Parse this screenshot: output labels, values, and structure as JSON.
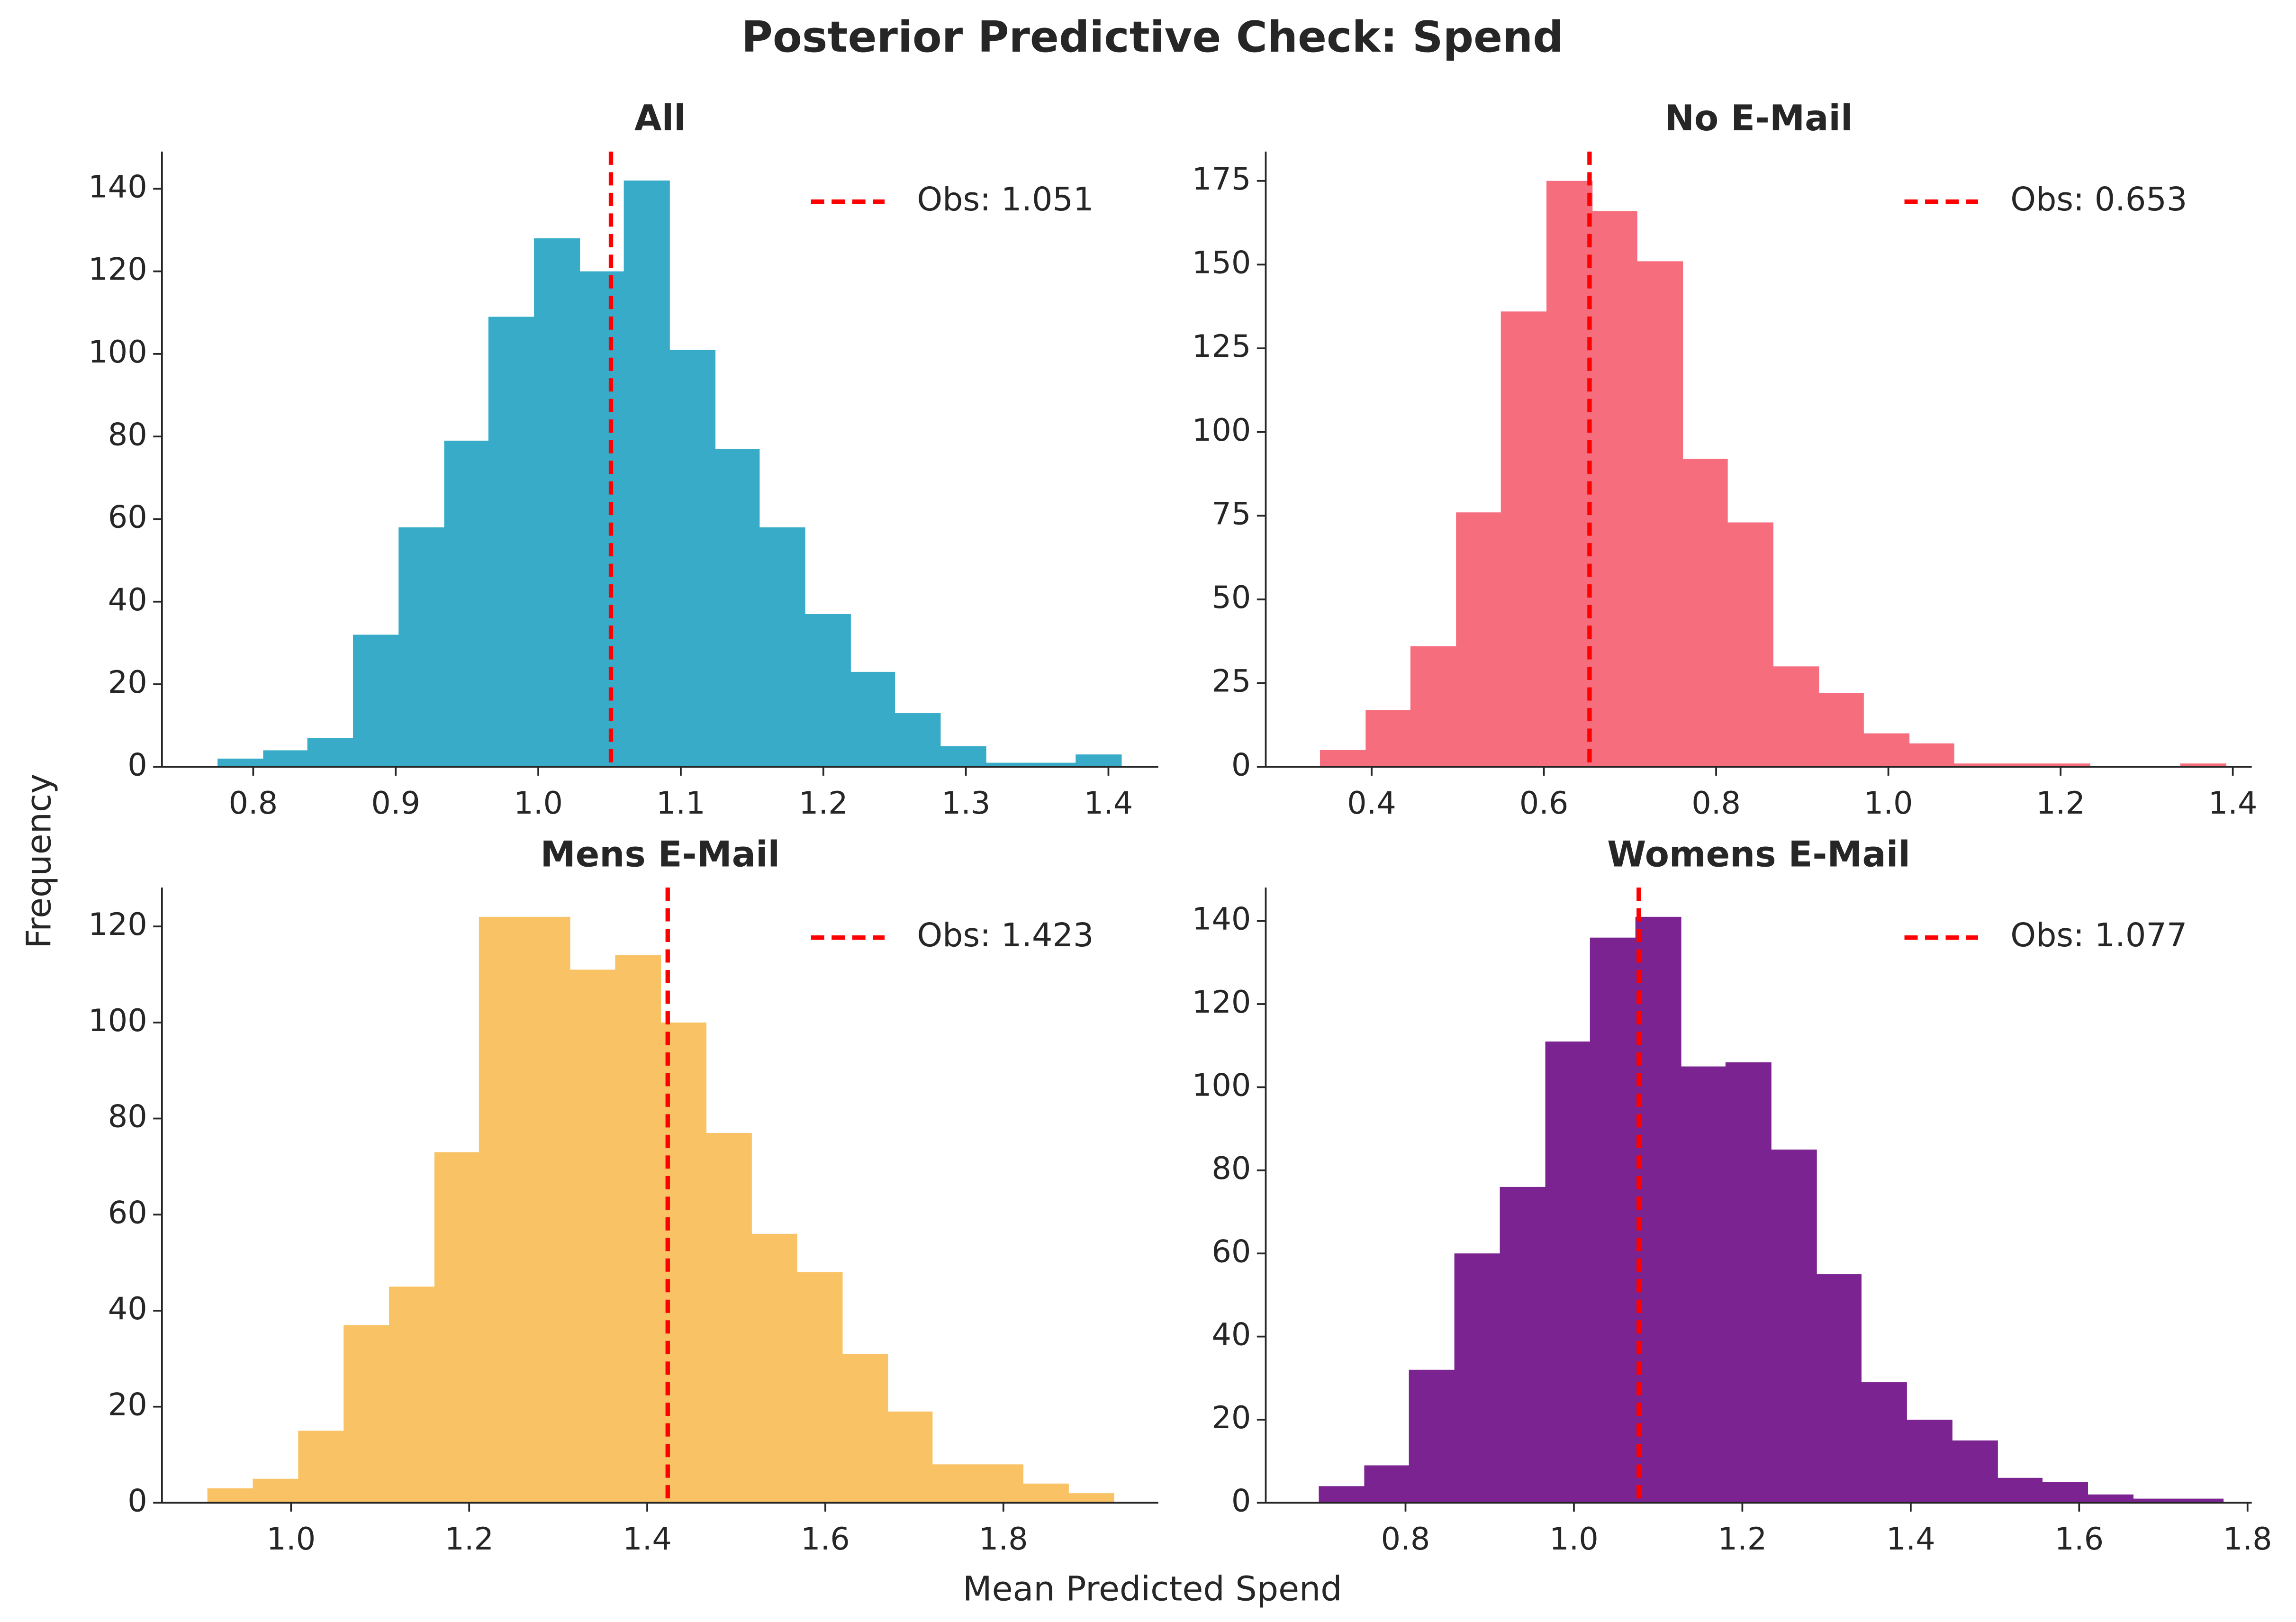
{
  "title": "Posterior Predictive Check: Spend",
  "xlabel": "Mean Predicted Spend",
  "ylabel": "Frequency",
  "chart_data": [
    {
      "type": "histogram",
      "title": "All",
      "color": "#37abc8",
      "bins": [
        0.775,
        0.807,
        0.838,
        0.87,
        0.902,
        0.934,
        0.965,
        0.997,
        1.029,
        1.06,
        1.092,
        1.124,
        1.155,
        1.187,
        1.219,
        1.25,
        1.282,
        1.314,
        1.346,
        1.377,
        1.409
      ],
      "values": [
        2,
        4,
        7,
        32,
        58,
        79,
        109,
        128,
        120,
        142,
        101,
        77,
        58,
        37,
        23,
        13,
        5,
        1,
        1,
        3
      ],
      "xlim": [
        0.736,
        1.435
      ],
      "ylim": [
        0,
        149
      ],
      "xticks": [
        0.8,
        0.9,
        {
          "value": 1,
          "label": "1.0"
        },
        1.1,
        1.2,
        1.3,
        1.4
      ],
      "yticks": [
        0,
        20,
        40,
        60,
        80,
        100,
        120,
        140
      ],
      "reference_line": {
        "value": 1.051,
        "label": "Obs: 1.051",
        "color": "#ff0000"
      },
      "legend": "upper right"
    },
    {
      "type": "histogram",
      "title": "No E-Mail",
      "color": "#f66d7e",
      "bins": [
        0.34,
        0.393,
        0.445,
        0.498,
        0.55,
        0.603,
        0.656,
        0.708,
        0.761,
        0.813,
        0.866,
        0.919,
        0.971,
        1.024,
        1.076,
        1.129,
        1.182,
        1.234,
        1.287,
        1.339,
        1.392
      ],
      "values": [
        5,
        17,
        36,
        76,
        136,
        175,
        166,
        151,
        92,
        73,
        30,
        22,
        10,
        7,
        1,
        1,
        1,
        0,
        0,
        1
      ],
      "xlim": [
        0.277,
        1.422
      ],
      "ylim": [
        0,
        183.75
      ],
      "xticks": [
        0.4,
        0.6,
        0.8,
        {
          "value": 1,
          "label": "1.0"
        },
        1.2,
        1.4
      ],
      "yticks": [
        0,
        25,
        50,
        75,
        100,
        125,
        150,
        175
      ],
      "reference_line": {
        "value": 0.653,
        "label": "Obs: 0.653",
        "color": "#ff0000"
      },
      "legend": "upper right"
    },
    {
      "type": "histogram",
      "title": "Mens E-Mail",
      "color": "#f9c264",
      "bins": [
        0.906,
        0.957,
        1.008,
        1.059,
        1.11,
        1.161,
        1.211,
        1.262,
        1.313,
        1.364,
        1.415,
        1.466,
        1.517,
        1.568,
        1.619,
        1.67,
        1.72,
        1.771,
        1.822,
        1.873,
        1.924
      ],
      "values": [
        3,
        5,
        15,
        37,
        45,
        73,
        122,
        122,
        111,
        114,
        100,
        77,
        56,
        48,
        31,
        19,
        8,
        8,
        4,
        2
      ],
      "xlim": [
        0.855,
        1.974
      ],
      "ylim": [
        0,
        128.1
      ],
      "xticks": [
        {
          "value": 1,
          "label": "1.0"
        },
        1.2,
        1.4,
        1.6,
        1.8
      ],
      "yticks": [
        0,
        20,
        40,
        60,
        80,
        100,
        120
      ],
      "reference_line": {
        "value": 1.423,
        "label": "Obs: 1.423",
        "color": "#ff0000"
      },
      "legend": "upper right"
    },
    {
      "type": "histogram",
      "title": "Womens E-Mail",
      "color": "#7b2390",
      "bins": [
        0.697,
        0.751,
        0.804,
        0.858,
        0.912,
        0.966,
        1.019,
        1.073,
        1.127,
        1.18,
        1.234,
        1.288,
        1.341,
        1.395,
        1.449,
        1.503,
        1.556,
        1.61,
        1.664,
        1.717,
        1.771
      ],
      "values": [
        4,
        9,
        32,
        60,
        76,
        111,
        136,
        141,
        105,
        106,
        85,
        55,
        29,
        20,
        15,
        6,
        5,
        2,
        1,
        1
      ],
      "xlim": [
        0.634,
        1.805
      ],
      "ylim": [
        0,
        148.05
      ],
      "xticks": [
        0.8,
        {
          "value": 1,
          "label": "1.0"
        },
        1.2,
        1.4,
        1.6,
        1.8
      ],
      "yticks": [
        0,
        20,
        40,
        60,
        80,
        100,
        120,
        140
      ],
      "reference_line": {
        "value": 1.077,
        "label": "Obs: 1.077",
        "color": "#ff0000"
      },
      "legend": "upper right"
    }
  ]
}
